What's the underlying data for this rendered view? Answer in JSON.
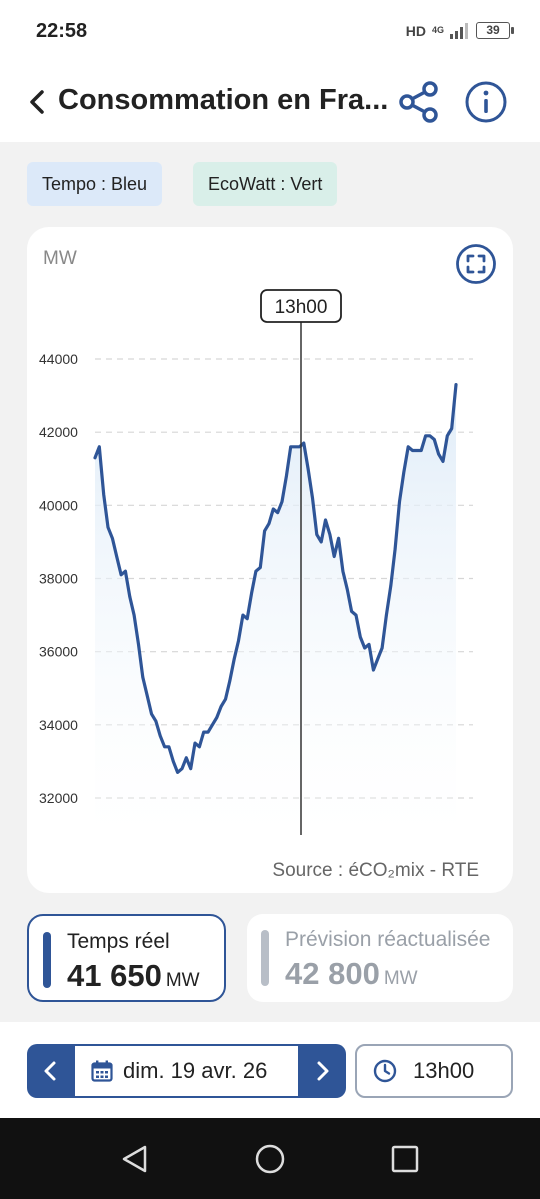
{
  "status_bar": {
    "time": "22:58",
    "network": "HD",
    "network_type": "4G",
    "battery": "39"
  },
  "header": {
    "title": "Consommation en Fra...",
    "back_icon": "chevron-left-icon",
    "share_icon": "share-icon",
    "info_icon": "info-icon"
  },
  "badges": {
    "tempo": "Tempo : Bleu",
    "ecowatt": "EcoWatt : Vert"
  },
  "colors": {
    "accent": "#2f5597",
    "tempo_bg": "#dce9f9",
    "ecowatt_bg": "#d9efe9",
    "forecast": "#b8bec7"
  },
  "chart": {
    "unit_label": "MW",
    "cursor_label": "13h00",
    "source": "Source : éCO₂mix - RTE"
  },
  "chart_data": {
    "type": "area",
    "ylabel": "MW",
    "ylim": [
      31000,
      45000
    ],
    "y_ticks": [
      "44000",
      "42000",
      "40000",
      "38000",
      "36000",
      "34000",
      "32000"
    ],
    "grid": true,
    "cursor_at": "13h00",
    "series": [
      {
        "values": [
          41300,
          41600,
          40300,
          39400,
          39100,
          38600,
          38100,
          38200,
          37500,
          37000,
          36200,
          35300,
          34800,
          34300,
          34100,
          33700,
          33400,
          33400,
          33000,
          32700,
          32800,
          33100,
          32800,
          33500,
          33400,
          33800,
          33800,
          34000,
          34200,
          34500,
          34700,
          35200,
          35800,
          36300,
          37000,
          36900,
          37600,
          38200,
          38300,
          39300,
          39500,
          39900,
          39800,
          40100,
          40800,
          41600,
          41600,
          41600,
          41700,
          41000,
          40200,
          39200,
          39000,
          39600,
          39200,
          38600,
          39100,
          38200,
          37700,
          37100,
          37000,
          36400,
          36100,
          36200,
          35500,
          35800,
          36100,
          37000,
          37800,
          38800,
          40100,
          40900,
          41600,
          41500,
          41500,
          41500,
          41900,
          41900,
          41800,
          41400,
          41200,
          41900,
          42100,
          43300
        ]
      }
    ]
  },
  "stats": {
    "real": {
      "label": "Temps réel",
      "value": "41 650",
      "unit": "MW"
    },
    "forecast": {
      "label": "Prévision réactualisée",
      "value": "42 800",
      "unit": "MW"
    }
  },
  "controls": {
    "date": "dim. 19 avr. 26",
    "time": "13h00",
    "prev_icon": "chevron-left-icon",
    "next_icon": "chevron-right-icon",
    "calendar_icon": "calendar-icon",
    "clock_icon": "clock-icon"
  },
  "system_nav": {
    "back": "back-triangle-icon",
    "home": "home-circle-icon",
    "recents": "recents-square-icon"
  }
}
